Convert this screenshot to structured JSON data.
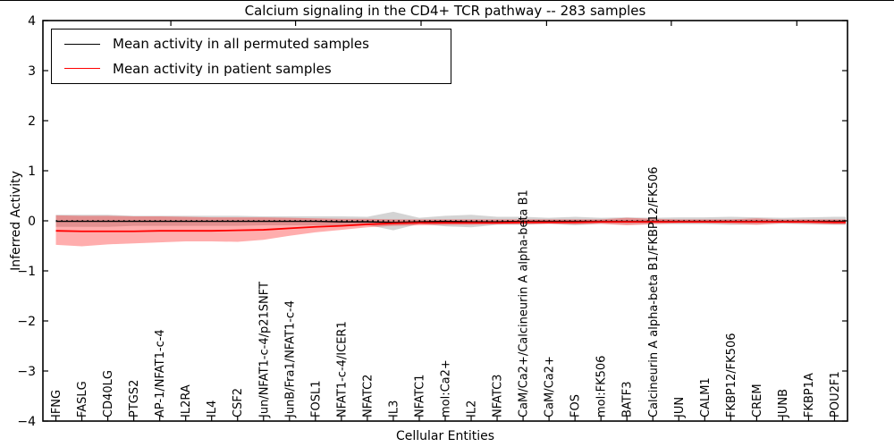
{
  "title": "Calcium signaling in the CD4+ TCR pathway -- 283 samples",
  "chart_data": {
    "type": "line",
    "title": "Calcium signaling in the CD4+ TCR pathway -- 283 samples",
    "xlabel": "Cellular Entities",
    "ylabel": "Inferred Activity",
    "ylim": [
      -4,
      4
    ],
    "yticks": [
      "4",
      "3",
      "2",
      "1",
      "0",
      "−1",
      "−2",
      "−3",
      "−4"
    ],
    "grid": false,
    "legend_position": "upper-left",
    "categories": [
      "IFNG",
      "FASLG",
      "CD40LG",
      "PTGS2",
      "AP-1/NFAT1-c-4",
      "IL2RA",
      "IL4",
      "CSF2",
      "Jun/NFAT1-c-4/p21SNFT",
      "JunB/Fra1/NFAT1-c-4",
      "FOSL1",
      "NFAT1-c-4/ICER1",
      "NFATC2",
      "IL3",
      "NFATC1",
      "mol:Ca2+",
      "IL2",
      "NFATC3",
      "CaM/Ca2+/Calcineurin A alpha-beta B1",
      "CaM/Ca2+",
      "FOS",
      "mol:FK506",
      "BATF3",
      "Calcineurin A alpha-beta B1/FKBP12/FK506",
      "JUN",
      "CALM1",
      "FKBP12/FK506",
      "CREM",
      "JUNB",
      "FKBP1A",
      "POU2F1"
    ],
    "series": [
      {
        "name": "Mean activity in all permuted samples",
        "color": "#000000",
        "values": [
          -0.01,
          -0.01,
          -0.01,
          -0.01,
          -0.01,
          -0.01,
          -0.01,
          -0.01,
          -0.01,
          -0.01,
          -0.01,
          -0.02,
          -0.02,
          -0.03,
          -0.02,
          -0.01,
          -0.02,
          -0.02,
          -0.01,
          -0.01,
          -0.01,
          -0.01,
          -0.01,
          -0.01,
          -0.01,
          -0.01,
          -0.01,
          -0.01,
          -0.01,
          -0.01,
          -0.01
        ]
      },
      {
        "name": "Mean activity in patient samples",
        "color": "#ff0000",
        "values": [
          -0.2,
          -0.21,
          -0.21,
          -0.21,
          -0.2,
          -0.2,
          -0.2,
          -0.19,
          -0.18,
          -0.15,
          -0.12,
          -0.1,
          -0.07,
          -0.05,
          -0.04,
          -0.04,
          -0.04,
          -0.04,
          -0.03,
          -0.03,
          -0.03,
          -0.02,
          -0.02,
          -0.02,
          -0.02,
          -0.02,
          -0.02,
          -0.02,
          -0.02,
          -0.02,
          -0.03
        ]
      }
    ],
    "bands": [
      {
        "name": "permuted-range",
        "color": "#999999",
        "opacity": 0.42,
        "high": [
          0.12,
          0.12,
          0.12,
          0.1,
          0.1,
          0.1,
          0.1,
          0.1,
          0.09,
          0.09,
          0.09,
          0.09,
          0.08,
          0.18,
          0.06,
          0.1,
          0.12,
          0.08,
          0.08,
          0.06,
          0.08,
          0.06,
          0.07,
          0.06,
          0.07,
          0.07,
          0.08,
          0.07,
          0.06,
          0.07,
          0.08
        ],
        "low": [
          -0.12,
          -0.12,
          -0.12,
          -0.1,
          -0.1,
          -0.1,
          -0.1,
          -0.1,
          -0.09,
          -0.09,
          -0.09,
          -0.09,
          -0.08,
          -0.19,
          -0.06,
          -0.11,
          -0.13,
          -0.08,
          -0.08,
          -0.06,
          -0.09,
          -0.06,
          -0.07,
          -0.06,
          -0.07,
          -0.07,
          -0.08,
          -0.07,
          -0.06,
          -0.07,
          -0.08
        ]
      },
      {
        "name": "patient-range",
        "color": "#ff0000",
        "opacity": 0.32,
        "high": [
          0.11,
          0.1,
          0.1,
          0.09,
          0.09,
          0.08,
          0.07,
          0.07,
          0.07,
          0.06,
          0.05,
          0.04,
          0.04,
          0.03,
          0.03,
          0.03,
          0.03,
          0.03,
          0.03,
          0.03,
          0.03,
          0.03,
          0.06,
          0.04,
          0.03,
          0.03,
          0.03,
          0.05,
          0.03,
          0.03,
          0.03
        ],
        "low": [
          -0.48,
          -0.51,
          -0.47,
          -0.45,
          -0.43,
          -0.41,
          -0.41,
          -0.42,
          -0.38,
          -0.3,
          -0.23,
          -0.18,
          -0.13,
          -0.1,
          -0.09,
          -0.08,
          -0.08,
          -0.07,
          -0.07,
          -0.06,
          -0.07,
          -0.06,
          -0.09,
          -0.07,
          -0.05,
          -0.05,
          -0.06,
          -0.08,
          -0.05,
          -0.06,
          -0.07
        ]
      }
    ],
    "zero_line": {
      "y": 0,
      "style": "dotted",
      "color": "#000000"
    }
  }
}
